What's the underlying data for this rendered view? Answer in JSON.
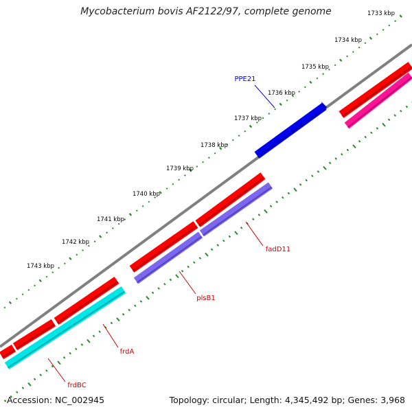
{
  "title": "Mycobacterium bovis AF2122/97, complete genome",
  "footer": {
    "accession": "Accession: NC_002945",
    "summary": "Topology: circular; Length: 4,345,492 bp; Genes: 3,968"
  },
  "colors": {
    "backbone": "#808080",
    "tick": "#228b22",
    "tick_label": "#000000",
    "gene_forward": "#0000ee",
    "gene_reverse_red": "#ff0000",
    "gene_reverse_pink": "#ff1493",
    "gene_cyan": "#00e5e5",
    "gene_purple": "#7b68ee",
    "label_forward": "#0000cc",
    "label_reverse": "#cc0000"
  },
  "tick_labels": [
    "1733 kbp",
    "1734 kbp",
    "1735 kbp",
    "1736 kbp",
    "1737 kbp",
    "1738 kbp",
    "1739 kbp",
    "1740 kbp",
    "1741 kbp",
    "1742 kbp",
    "1743 kbp"
  ],
  "genes": [
    {
      "label": "PPE21",
      "strand": "forward"
    },
    {
      "label": "fadD11",
      "strand": "reverse"
    },
    {
      "label": "plsB1",
      "strand": "reverse"
    },
    {
      "label": "frdA",
      "strand": "reverse"
    },
    {
      "label": "frdBC",
      "strand": "reverse"
    }
  ]
}
